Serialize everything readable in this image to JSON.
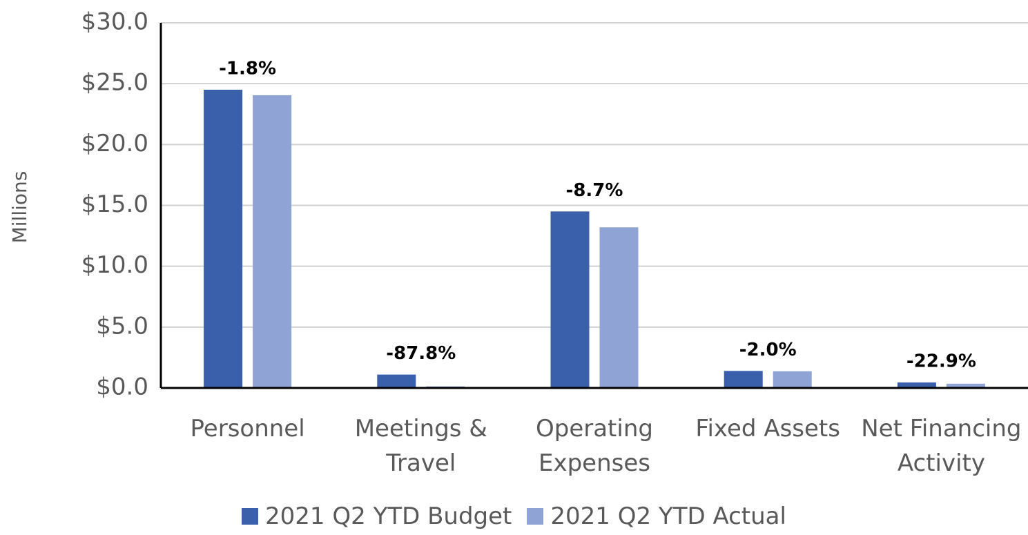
{
  "chart_data": {
    "type": "bar",
    "y_label": "Millions",
    "categories": [
      "Personnel",
      "Meetings & Travel",
      "Operating Expenses",
      "Fixed Assets",
      "Net Financing Activity"
    ],
    "series": [
      {
        "name": "2021 Q2 YTD Budget",
        "color": "#3a5fab",
        "values": [
          24.5,
          1.1,
          14.5,
          1.4,
          0.45
        ]
      },
      {
        "name": "2021 Q2 YTD Actual",
        "color": "#8fa4d4",
        "values": [
          24.05,
          0.13,
          13.2,
          1.37,
          0.35
        ]
      }
    ],
    "annotations": [
      "-1.8%",
      "-87.8%",
      "-8.7%",
      "-2.0%",
      "-22.9%"
    ],
    "ylim": [
      0,
      30
    ],
    "yticks": [
      {
        "value": 0,
        "label": "$0.0"
      },
      {
        "value": 5,
        "label": "$5.0"
      },
      {
        "value": 10,
        "label": "$10.0"
      },
      {
        "value": 15,
        "label": "$15.0"
      },
      {
        "value": 20,
        "label": "$20.0"
      },
      {
        "value": 25,
        "label": "$25.0"
      },
      {
        "value": 30,
        "label": "$30.0"
      }
    ],
    "grid": true,
    "legend": "bottom"
  }
}
